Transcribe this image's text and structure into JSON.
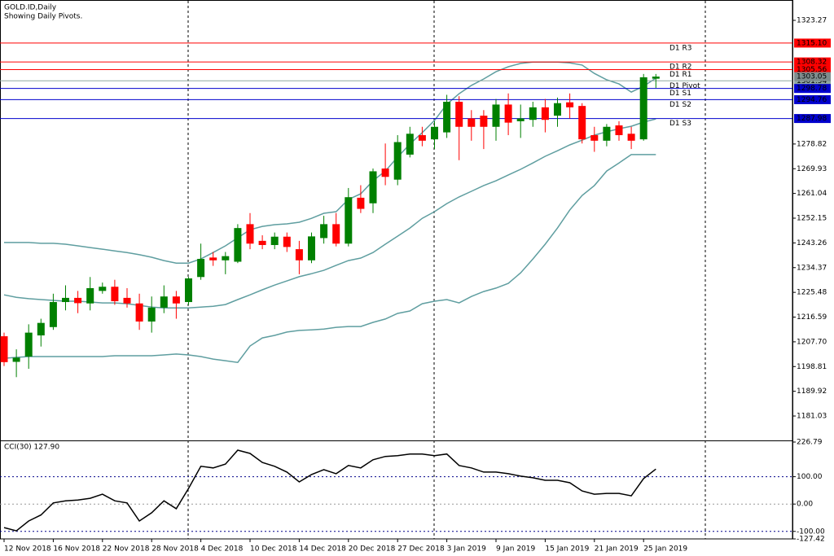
{
  "chart_data": [
    {
      "type": "candlestick",
      "title": "GOLD.ID,Daily",
      "subtitle": "Showing Daily Pivots.",
      "categories": [
        "12 Nov 2018",
        null,
        null,
        null,
        "16 Nov 2018",
        null,
        null,
        null,
        "22 Nov 2018",
        null,
        null,
        null,
        "28 Nov 2018",
        null,
        null,
        null,
        "4 Dec 2018",
        null,
        null,
        null,
        "10 Dec 2018",
        null,
        null,
        null,
        "14 Dec 2018",
        null,
        null,
        null,
        "20 Dec 2018",
        null,
        null,
        null,
        "27 Dec 2018",
        null,
        null,
        null,
        "3 Jan 2019",
        null,
        null,
        null,
        "9 Jan 2019",
        null,
        null,
        null,
        "15 Jan 2019",
        null,
        null,
        null,
        "21 Jan 2019",
        null,
        null,
        null,
        "25 Jan 2019",
        null
      ],
      "open": [
        1209.7,
        1200.5,
        1202.4,
        1210,
        1213,
        1222,
        1223.5,
        1221.5,
        1226,
        1227.5,
        1223.5,
        1221.5,
        1215,
        1220,
        1224,
        1222,
        1231,
        1238,
        1237,
        1236.5,
        1250,
        1244,
        1242.5,
        1245.5,
        1241,
        1237,
        1245,
        1250,
        1243,
        1259.5,
        1257.5,
        1270,
        1266,
        1275,
        1282,
        1280.5,
        1283,
        1294,
        1288,
        1289,
        1285,
        1293,
        1287,
        1287.5,
        1292,
        1289,
        1293.8,
        1292.5,
        1282,
        1280,
        1285.5,
        1282.5,
        1280.5,
        1302.3
      ],
      "high": [
        1211,
        1205,
        1214,
        1216,
        1225,
        1228,
        1226,
        1231,
        1229,
        1230,
        1227,
        1225,
        1224,
        1228,
        1226,
        1231,
        1243,
        1240,
        1240,
        1250,
        1254,
        1246,
        1247,
        1247,
        1244,
        1247,
        1253,
        1254,
        1263,
        1264,
        1270,
        1279,
        1282,
        1285,
        1285,
        1287,
        1296.5,
        1296,
        1291,
        1291,
        1295,
        1297,
        1293,
        1294,
        1295,
        1295.5,
        1297,
        1293.5,
        1285,
        1286,
        1287,
        1285,
        1304,
        1304
      ],
      "low": [
        1199,
        1195,
        1198,
        1206,
        1212,
        1219,
        1218,
        1219,
        1225,
        1221,
        1220,
        1212,
        1211,
        1218,
        1216,
        1221,
        1230,
        1235,
        1232,
        1236,
        1241,
        1241,
        1241,
        1240,
        1232,
        1236,
        1243,
        1242,
        1242,
        1254,
        1254,
        1264,
        1264,
        1274,
        1278,
        1277,
        1281,
        1273,
        1280,
        1277,
        1280,
        1282,
        1281,
        1285,
        1283,
        1285,
        1288,
        1279,
        1276,
        1278,
        1280,
        1277,
        1280,
        1299
      ],
      "close": [
        1200.4,
        1202,
        1211,
        1214.5,
        1222,
        1223.5,
        1221.6,
        1227,
        1227.5,
        1222.3,
        1221.5,
        1215,
        1220,
        1224,
        1221.5,
        1230.5,
        1237.5,
        1237,
        1238.5,
        1248.6,
        1243,
        1242.5,
        1245.5,
        1241.8,
        1237,
        1245.6,
        1250,
        1243,
        1259.7,
        1255.5,
        1269,
        1267,
        1279.5,
        1282.5,
        1280,
        1285,
        1294,
        1285,
        1285,
        1285,
        1293,
        1286.5,
        1288,
        1292,
        1287.5,
        1293.5,
        1292,
        1280.5,
        1280,
        1285,
        1282,
        1280,
        1302.8,
        1303.05
      ],
      "up_color": "#008000",
      "down_color": "#ff0000",
      "bands": {
        "color": "#5f9ea0",
        "upper": [
          1243.4,
          1243.4,
          1243.4,
          1243.1,
          1243.1,
          1242.8,
          1242.2,
          1241.6,
          1241.0,
          1240.4,
          1239.8,
          1239.0,
          1238.1,
          1236.9,
          1236.0,
          1236.0,
          1237.5,
          1239.8,
          1242.2,
          1245.1,
          1248.0,
          1249.2,
          1249.8,
          1250.1,
          1250.7,
          1252.1,
          1253.9,
          1254.5,
          1258.9,
          1260.9,
          1265.6,
          1269.1,
          1274.1,
          1278.8,
          1282.9,
          1287.3,
          1293.1,
          1296.9,
          1299.9,
          1302.2,
          1304.8,
          1306.6,
          1307.8,
          1308.3,
          1308.3,
          1308.3,
          1308.0,
          1307.2,
          1304.2,
          1301.9,
          1300.4,
          1297.5,
          1299.6,
          1302.5
        ],
        "middle": [
          1224.6,
          1223.7,
          1223.2,
          1222.9,
          1222.6,
          1222.3,
          1222.3,
          1222.0,
          1221.7,
          1221.7,
          1221.4,
          1220.8,
          1220.2,
          1219.9,
          1219.9,
          1219.9,
          1220.2,
          1220.5,
          1221.1,
          1222.9,
          1224.6,
          1226.4,
          1228.1,
          1229.6,
          1231.1,
          1232.2,
          1233.4,
          1235.2,
          1236.9,
          1237.8,
          1239.8,
          1242.8,
          1245.7,
          1248.6,
          1252.1,
          1254.5,
          1257.4,
          1259.8,
          1261.8,
          1263.9,
          1265.6,
          1267.7,
          1269.7,
          1272.0,
          1274.4,
          1276.4,
          1278.5,
          1280.2,
          1282.0,
          1283.2,
          1284.3,
          1285.2,
          1286.7,
          1287.8
        ],
        "lower": [
          1201.8,
          1202.1,
          1202.4,
          1202.4,
          1202.4,
          1202.4,
          1202.4,
          1202.4,
          1202.4,
          1202.7,
          1202.7,
          1202.7,
          1202.7,
          1203.0,
          1203.3,
          1203.0,
          1202.4,
          1201.5,
          1200.9,
          1200.3,
          1206.2,
          1209.1,
          1210.0,
          1211.2,
          1211.8,
          1212.0,
          1212.3,
          1212.9,
          1213.2,
          1213.2,
          1214.7,
          1215.9,
          1217.9,
          1218.8,
          1221.4,
          1222.3,
          1222.9,
          1221.7,
          1224.0,
          1225.8,
          1227.0,
          1228.7,
          1232.5,
          1237.5,
          1242.8,
          1248.6,
          1255.1,
          1260.3,
          1263.9,
          1269.1,
          1272.0,
          1275.0,
          1275.0,
          1275.0
        ]
      },
      "pivots": [
        {
          "name": "D1 R3",
          "value": 1315.1,
          "value_label": "1315.10",
          "color": "#ff0000"
        },
        {
          "name": "D1 R2",
          "value": 1308.32,
          "color": "#ff0000"
        },
        {
          "name": "D1 R1",
          "value": 1305.56,
          "color": "#ff0000"
        },
        {
          "name": "D1 Pivot",
          "value": 1301.54,
          "color": "#8fa8a0"
        },
        {
          "name": "D1 S1",
          "value": 1298.78,
          "color": "#0000cd"
        },
        {
          "name": "D1 S2",
          "value": 1294.76,
          "color": "#0000cd"
        },
        {
          "name": "D1 S3",
          "value": 1287.98,
          "color": "#0000cd"
        }
      ],
      "last_price": 1303.05,
      "ylim": [
        1172.55,
        1329.71
      ],
      "yticks": [
        1323.27,
        1278.82,
        1269.93,
        1261.04,
        1252.15,
        1243.26,
        1234.37,
        1225.48,
        1216.59,
        {
          "value": 1207.7,
          "label": "1207.70"
        },
        1198.81,
        1189.92,
        1181.03
      ]
    },
    {
      "type": "line",
      "title": "CCI(30) 127.90",
      "values": [
        -86,
        -98,
        -62,
        -40,
        4,
        12,
        15,
        21,
        36,
        12,
        4,
        -62,
        -32,
        12,
        -17,
        57,
        138,
        132,
        146,
        197,
        185,
        152,
        138,
        117,
        81,
        108,
        126,
        111,
        141,
        132,
        162,
        174,
        177,
        183,
        183,
        177,
        183,
        141,
        132,
        117,
        117,
        111,
        102,
        96,
        87,
        87,
        78,
        48,
        36,
        39,
        39,
        30,
        93,
        127.9
      ],
      "color": "#000000",
      "levels": [
        100,
        0,
        -100
      ],
      "ylim": [
        -127.42,
        226.79
      ],
      "yticks": [
        226.79,
        {
          "value": 100,
          "label": "100.00"
        },
        {
          "value": 0,
          "label": "0.00"
        },
        {
          "value": -100,
          "label": "-100.00"
        },
        -127.42
      ]
    }
  ]
}
